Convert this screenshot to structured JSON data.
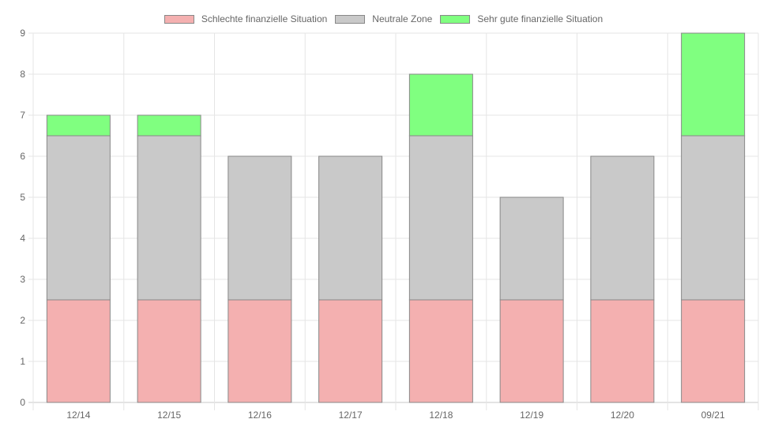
{
  "chart_data": {
    "type": "bar",
    "stacked": true,
    "categories": [
      "12/14",
      "12/15",
      "12/16",
      "12/17",
      "12/18",
      "12/19",
      "12/20",
      "09/21"
    ],
    "series": [
      {
        "name": "Schlechte finanzielle Situation",
        "color": "#f4b0b0",
        "values": [
          2.5,
          2.5,
          2.5,
          2.5,
          2.5,
          2.5,
          2.5,
          2.5
        ]
      },
      {
        "name": "Neutrale Zone",
        "color": "#c9c9c9",
        "values": [
          4,
          4,
          3.5,
          3.5,
          4,
          2.5,
          3.5,
          4
        ]
      },
      {
        "name": "Sehr gute finanzielle Situation",
        "color": "#80ff80",
        "values": [
          0.5,
          0.5,
          0,
          0,
          1.5,
          0,
          0,
          2.5
        ]
      }
    ],
    "y_ticks": [
      "0",
      "1",
      "2",
      "3",
      "4",
      "5",
      "6",
      "7",
      "8",
      "9"
    ],
    "ylim": [
      0,
      9
    ],
    "grid": true,
    "legend_position": "top",
    "border_color": "#888888",
    "grid_color": "#e5e5e5"
  }
}
